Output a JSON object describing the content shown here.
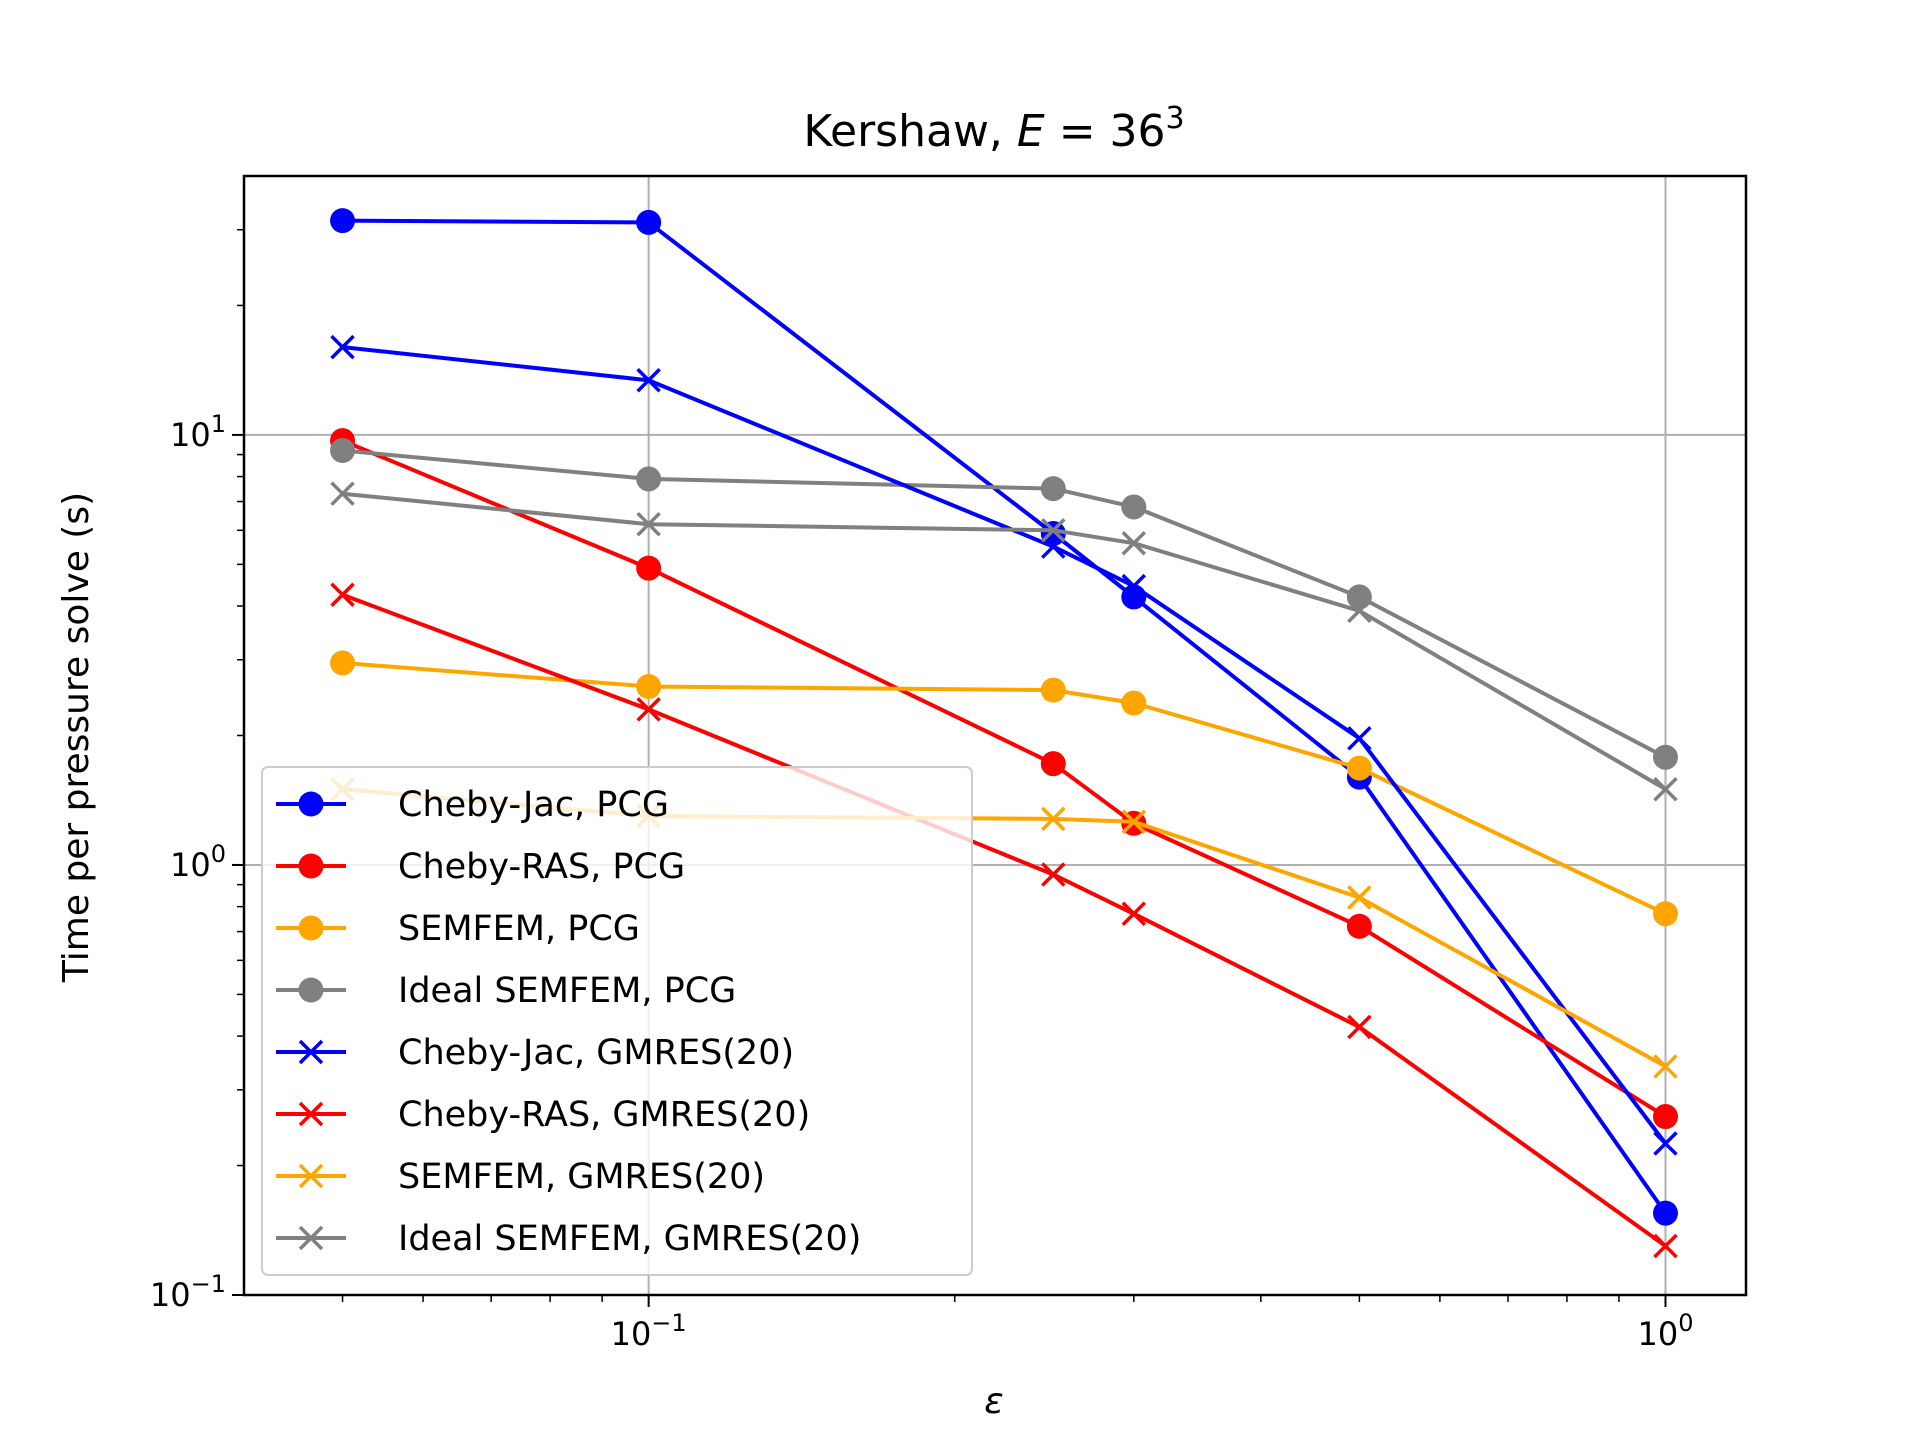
{
  "chart_data": {
    "type": "line",
    "title": "Kershaw, E = 36³",
    "title_parts": {
      "prefix": "Kershaw, ",
      "var": "E",
      "eq": " = 36",
      "sup": "3"
    },
    "xlabel": "ε",
    "ylabel": "Time per pressure solve (s)",
    "x_scale": "log",
    "y_scale": "log",
    "xlim": [
      0.04,
      1.2
    ],
    "ylim": [
      0.1,
      40
    ],
    "grid": true,
    "legend_position": "lower-left",
    "x_ticks": [
      {
        "value": 0.1,
        "base": "10",
        "exp": "−1"
      },
      {
        "value": 1,
        "base": "10",
        "exp": "0"
      }
    ],
    "y_ticks": [
      {
        "value": 0.1,
        "base": "10",
        "exp": "−1"
      },
      {
        "value": 1,
        "base": "10",
        "exp": "0"
      },
      {
        "value": 10,
        "base": "10",
        "exp": "1"
      }
    ],
    "x": [
      0.05,
      0.1,
      0.25,
      0.3,
      0.5,
      1.0
    ],
    "series": [
      {
        "name": "Cheby-Jac, PCG",
        "color": "#0000ff",
        "marker": "circle",
        "values": [
          31.5,
          31.2,
          5.9,
          4.2,
          1.6,
          0.155
        ]
      },
      {
        "name": "Cheby-RAS, PCG",
        "color": "#ff0000",
        "marker": "circle",
        "values": [
          9.7,
          4.9,
          1.72,
          1.25,
          0.72,
          0.26
        ]
      },
      {
        "name": "SEMFEM, PCG",
        "color": "#ffa500",
        "marker": "circle",
        "values": [
          2.95,
          2.6,
          2.55,
          2.38,
          1.68,
          0.77
        ]
      },
      {
        "name": "Ideal SEMFEM, PCG",
        "color": "#808080",
        "marker": "circle",
        "values": [
          9.2,
          7.9,
          7.5,
          6.8,
          4.2,
          1.78
        ]
      },
      {
        "name": "Cheby-Jac, GMRES(20)",
        "color": "#0000ff",
        "marker": "x",
        "values": [
          16.0,
          13.4,
          5.5,
          4.45,
          1.97,
          0.225
        ]
      },
      {
        "name": "Cheby-RAS, GMRES(20)",
        "color": "#ff0000",
        "marker": "x",
        "values": [
          4.25,
          2.3,
          0.95,
          0.77,
          0.42,
          0.13
        ]
      },
      {
        "name": "SEMFEM, GMRES(20)",
        "color": "#ffa500",
        "marker": "x",
        "values": [
          1.5,
          1.3,
          1.28,
          1.26,
          0.84,
          0.34
        ]
      },
      {
        "name": "Ideal SEMFEM, GMRES(20)",
        "color": "#808080",
        "marker": "x",
        "values": [
          7.3,
          6.2,
          6.0,
          5.6,
          3.9,
          1.5
        ]
      }
    ]
  }
}
